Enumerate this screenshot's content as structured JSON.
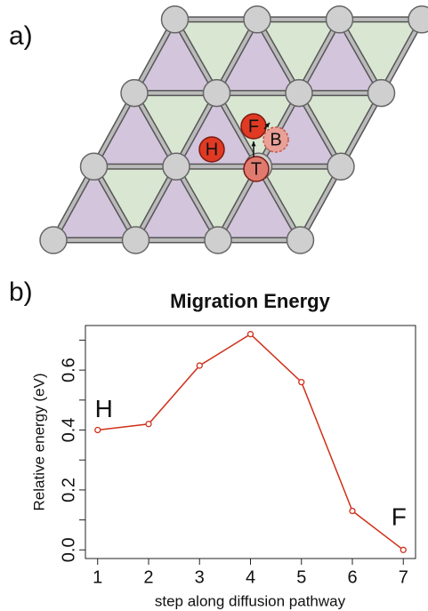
{
  "panel_a": {
    "label": "a)",
    "sites": [
      {
        "label": "H"
      },
      {
        "label": "F"
      },
      {
        "label": "B"
      },
      {
        "label": "T"
      }
    ]
  },
  "panel_b_label": "b)",
  "chart_data": {
    "type": "line",
    "title": "Migration Energy",
    "x_label": "step along diffusion pathway",
    "y_label": "Relative energy (eV)",
    "x": [
      1,
      2,
      3,
      4,
      5,
      6,
      7
    ],
    "values": [
      0.4,
      0.42,
      0.615,
      0.72,
      0.56,
      0.13,
      0.0
    ],
    "color": "#d0301a",
    "xlim": [
      0.76,
      7.24
    ],
    "ylim": [
      -0.0288,
      0.7488
    ],
    "xticks": [
      1,
      2,
      3,
      4,
      5,
      6,
      7
    ],
    "yticks": [
      {
        "value": 0,
        "label": "0.0"
      },
      0.2,
      0.4,
      0.6
    ],
    "yminorticks": [
      0.1,
      0.3,
      0.5,
      0.7
    ],
    "annotations": [
      "H",
      "F"
    ]
  }
}
